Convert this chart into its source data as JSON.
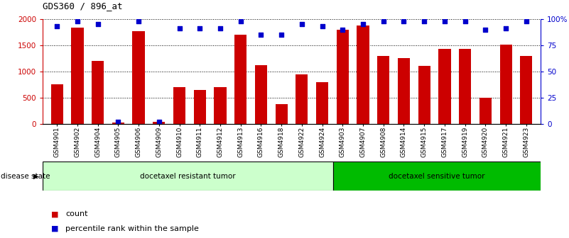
{
  "title": "GDS360 / 896_at",
  "samples": [
    "GSM4901",
    "GSM4902",
    "GSM4904",
    "GSM4905",
    "GSM4906",
    "GSM4909",
    "GSM4910",
    "GSM4911",
    "GSM4912",
    "GSM4913",
    "GSM4916",
    "GSM4918",
    "GSM4922",
    "GSM4924",
    "GSM4903",
    "GSM4907",
    "GSM4908",
    "GSM4914",
    "GSM4915",
    "GSM4917",
    "GSM4919",
    "GSM4920",
    "GSM4921",
    "GSM4923"
  ],
  "counts": [
    750,
    1830,
    1200,
    30,
    1770,
    40,
    700,
    650,
    700,
    1700,
    1120,
    370,
    940,
    790,
    1790,
    1870,
    1300,
    1250,
    1100,
    1430,
    1430,
    490,
    1510,
    1300
  ],
  "percentiles": [
    93,
    98,
    95,
    2,
    98,
    2,
    91,
    91,
    91,
    98,
    85,
    85,
    95,
    93,
    90,
    95,
    98,
    98,
    98,
    98,
    98,
    90,
    91,
    98
  ],
  "group1_label": "docetaxel resistant tumor",
  "group1_count": 14,
  "group2_label": "docetaxel sensitive tumor",
  "group2_count": 10,
  "disease_state_label": "disease state",
  "legend_count": "count",
  "legend_percentile": "percentile rank within the sample",
  "bar_color": "#cc0000",
  "dot_color": "#0000cc",
  "group1_bg": "#ccffcc",
  "group2_bg": "#00bb00",
  "ylim_left": [
    0,
    2000
  ],
  "ylim_right": [
    0,
    100
  ],
  "yticks_left": [
    0,
    500,
    1000,
    1500,
    2000
  ],
  "yticks_right": [
    0,
    25,
    50,
    75,
    100
  ],
  "background_color": "#ffffff"
}
